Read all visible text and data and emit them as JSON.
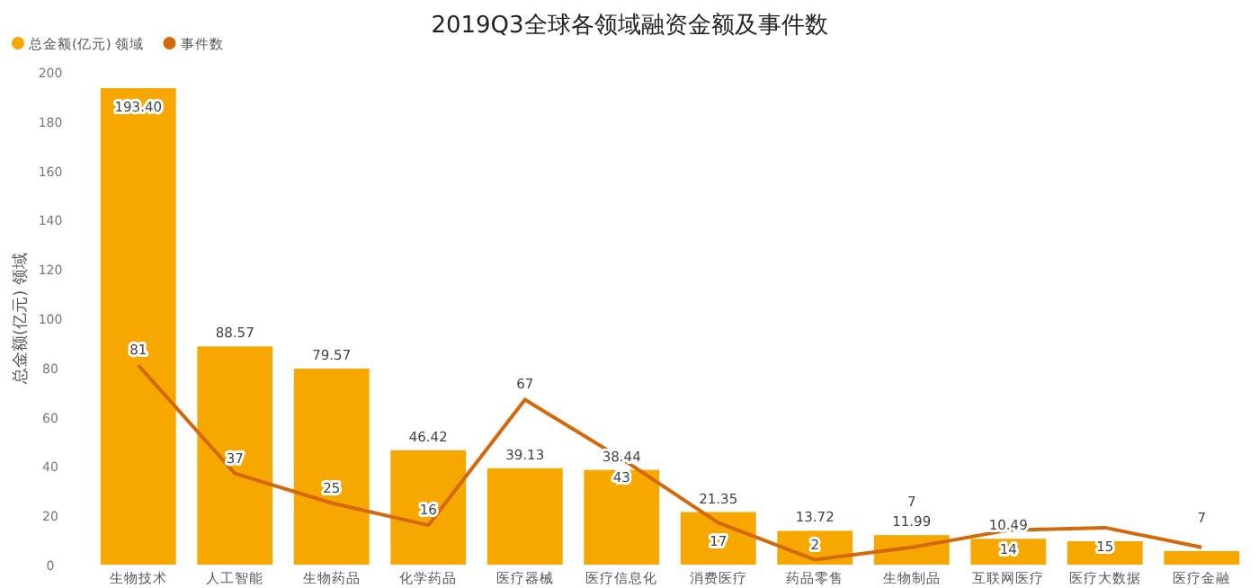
{
  "chart_data": {
    "type": "bar",
    "title": "2019Q3全球各领域融资金额及事件数",
    "ylabel": "总金额(亿元) 领域",
    "categories": [
      "生物技术",
      "人工智能",
      "生物药品",
      "化学药品",
      "医疗器械",
      "医疗信息化",
      "消费医疗",
      "药品零售",
      "生物制品",
      "互联网医疗",
      "医疗大数据",
      "医疗金融"
    ],
    "series": [
      {
        "name": "总金额(亿元) 领域",
        "color": "#f7a800",
        "values": [
          193.4,
          88.57,
          79.57,
          46.42,
          39.13,
          38.44,
          21.35,
          13.72,
          11.99,
          10.49,
          9.5,
          5.5
        ],
        "value_labels": [
          "193.40",
          "88.57",
          "79.57",
          "46.42",
          "39.13",
          "38.44",
          "21.35",
          "13.72",
          "11.99",
          "10.49",
          null,
          null
        ]
      },
      {
        "name": "事件数",
        "type": "line",
        "color": "#d4690c",
        "values": [
          81,
          37,
          25,
          16,
          67,
          43,
          17,
          2,
          7,
          14,
          15,
          7
        ],
        "value_labels": [
          "81",
          "37",
          "25",
          "16",
          "67",
          "43",
          "17",
          "2",
          "7",
          "14",
          "15",
          "7"
        ]
      }
    ],
    "ylim": [
      0,
      200
    ],
    "yticks": [
      0,
      20,
      40,
      60,
      80,
      100,
      120,
      140,
      160,
      180,
      200
    ],
    "grid": false,
    "legend": "top left"
  }
}
